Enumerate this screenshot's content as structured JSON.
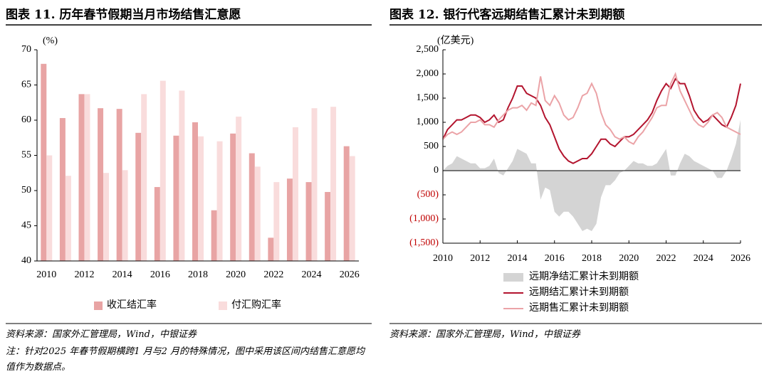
{
  "chart_data": [
    {
      "type": "bar",
      "title": "图表 11. 历年春节假期当月市场结售汇意愿",
      "unit": "(%)",
      "categories": [
        "2010",
        null,
        "2012",
        null,
        "2014",
        null,
        "2016",
        null,
        "2018",
        null,
        "2020",
        null,
        "2022",
        null,
        "2024",
        null,
        "2026"
      ],
      "series": [
        {
          "name": "收汇结汇率",
          "color": "#e8a4a4",
          "values": [
            68,
            60.3,
            63.7,
            61.7,
            61.6,
            58.2,
            50.5,
            57.8,
            59.7,
            47.2,
            58.1,
            55.3,
            43.3,
            51.7,
            51.2,
            49.8,
            56.3
          ]
        },
        {
          "name": "付汇购汇率",
          "color": "#f9dcdc",
          "values": [
            55,
            52.1,
            63.7,
            52.5,
            52.9,
            63.7,
            65.6,
            64.2,
            57.7,
            57.0,
            60.5,
            53.4,
            51.2,
            59.0,
            61.7,
            61.9,
            54.9
          ]
        }
      ],
      "ylim": [
        40,
        70
      ],
      "yticks": [
        40,
        45,
        50,
        55,
        60,
        65,
        70
      ],
      "source": "资料来源：国家外汇管理局，Wind，中银证券",
      "note": "注：针对2025 年春节假期横跨1 月与2 月的特殊情况，图中采用该区间内结售汇意愿均值作为数据点。"
    },
    {
      "type": "line",
      "title": "图表 12. 银行代客远期结售汇累计未到期额",
      "unit": "(亿美元)",
      "x": [
        2010,
        2010.25,
        2010.5,
        2010.75,
        2011,
        2011.25,
        2011.5,
        2011.75,
        2012,
        2012.25,
        2012.5,
        2012.75,
        2013,
        2013.25,
        2013.5,
        2013.75,
        2014,
        2014.25,
        2014.5,
        2014.75,
        2015,
        2015.25,
        2015.5,
        2015.75,
        2016,
        2016.25,
        2016.5,
        2016.75,
        2017,
        2017.25,
        2017.5,
        2017.75,
        2018,
        2018.25,
        2018.5,
        2018.75,
        2019,
        2019.25,
        2019.5,
        2019.75,
        2020,
        2020.25,
        2020.5,
        2020.75,
        2021,
        2021.25,
        2021.5,
        2021.75,
        2022,
        2022.25,
        2022.5,
        2022.75,
        2023,
        2023.25,
        2023.5,
        2023.75,
        2024,
        2024.25,
        2024.5,
        2024.75,
        2025,
        2025.25,
        2025.5,
        2025.75,
        2026
      ],
      "series": [
        {
          "name": "远期净结汇累计未到期额",
          "kind": "area",
          "color": "#d4d4d4",
          "values": [
            0,
            100,
            150,
            300,
            250,
            200,
            150,
            150,
            50,
            50,
            100,
            250,
            -50,
            -100,
            50,
            200,
            450,
            400,
            350,
            150,
            150,
            -600,
            -350,
            -400,
            -850,
            -950,
            -850,
            -850,
            -950,
            -1100,
            -1250,
            -1200,
            -1250,
            -1100,
            -550,
            -300,
            -300,
            -200,
            -50,
            0,
            100,
            200,
            150,
            150,
            100,
            100,
            150,
            300,
            450,
            -100,
            -100,
            150,
            350,
            300,
            200,
            150,
            100,
            50,
            0,
            -150,
            -150,
            0,
            250,
            550,
            1050
          ]
        },
        {
          "name": "远期结汇累计未到期额",
          "kind": "line",
          "color": "#b3142e",
          "values": [
            650,
            850,
            950,
            1050,
            1050,
            1100,
            1150,
            1150,
            1100,
            1000,
            1050,
            1150,
            1000,
            1050,
            1300,
            1500,
            1750,
            1750,
            1600,
            1550,
            1500,
            1350,
            1100,
            950,
            700,
            450,
            300,
            200,
            150,
            200,
            250,
            250,
            350,
            500,
            650,
            650,
            550,
            500,
            600,
            700,
            700,
            750,
            850,
            950,
            1050,
            1200,
            1450,
            1650,
            1800,
            1700,
            1900,
            1800,
            1800,
            1550,
            1250,
            1100,
            1000,
            1050,
            1150,
            1050,
            950,
            900,
            1100,
            1350,
            1800
          ]
        },
        {
          "name": "远期售汇累计未到期额",
          "kind": "line",
          "color": "#eba3a7",
          "values": [
            650,
            750,
            800,
            750,
            800,
            900,
            1000,
            1000,
            1050,
            950,
            950,
            900,
            1050,
            1150,
            1250,
            1300,
            1300,
            1350,
            1250,
            1400,
            1350,
            1950,
            1450,
            1350,
            1550,
            1400,
            1150,
            1050,
            1100,
            1300,
            1550,
            1600,
            1800,
            1600,
            1200,
            950,
            850,
            700,
            650,
            700,
            600,
            550,
            700,
            800,
            950,
            1100,
            1300,
            1350,
            1350,
            1800,
            2000,
            1650,
            1450,
            1250,
            1050,
            950,
            900,
            1000,
            1150,
            1200,
            1100,
            900,
            850,
            800,
            750
          ]
        }
      ],
      "xlim": [
        2010,
        2026
      ],
      "xticks": [
        2010,
        2012,
        2014,
        2016,
        2018,
        2020,
        2022,
        2024,
        2026
      ],
      "ylim": [
        -1500,
        2500
      ],
      "yticks": [
        {
          "value": -1500,
          "label": "(1,500)"
        },
        {
          "value": -1000,
          "label": "(1,000)"
        },
        {
          "value": -500,
          "label": "(500)"
        },
        0,
        500,
        {
          "value": 1000,
          "label": "1,000"
        },
        {
          "value": 1500,
          "label": "1,500"
        },
        {
          "value": 2000,
          "label": "2,000"
        },
        {
          "value": 2500,
          "label": "2,500"
        }
      ],
      "negative_tick_color": "#c00000",
      "source": "资料来源：国家外汇管理局，Wind，中银证券"
    }
  ]
}
